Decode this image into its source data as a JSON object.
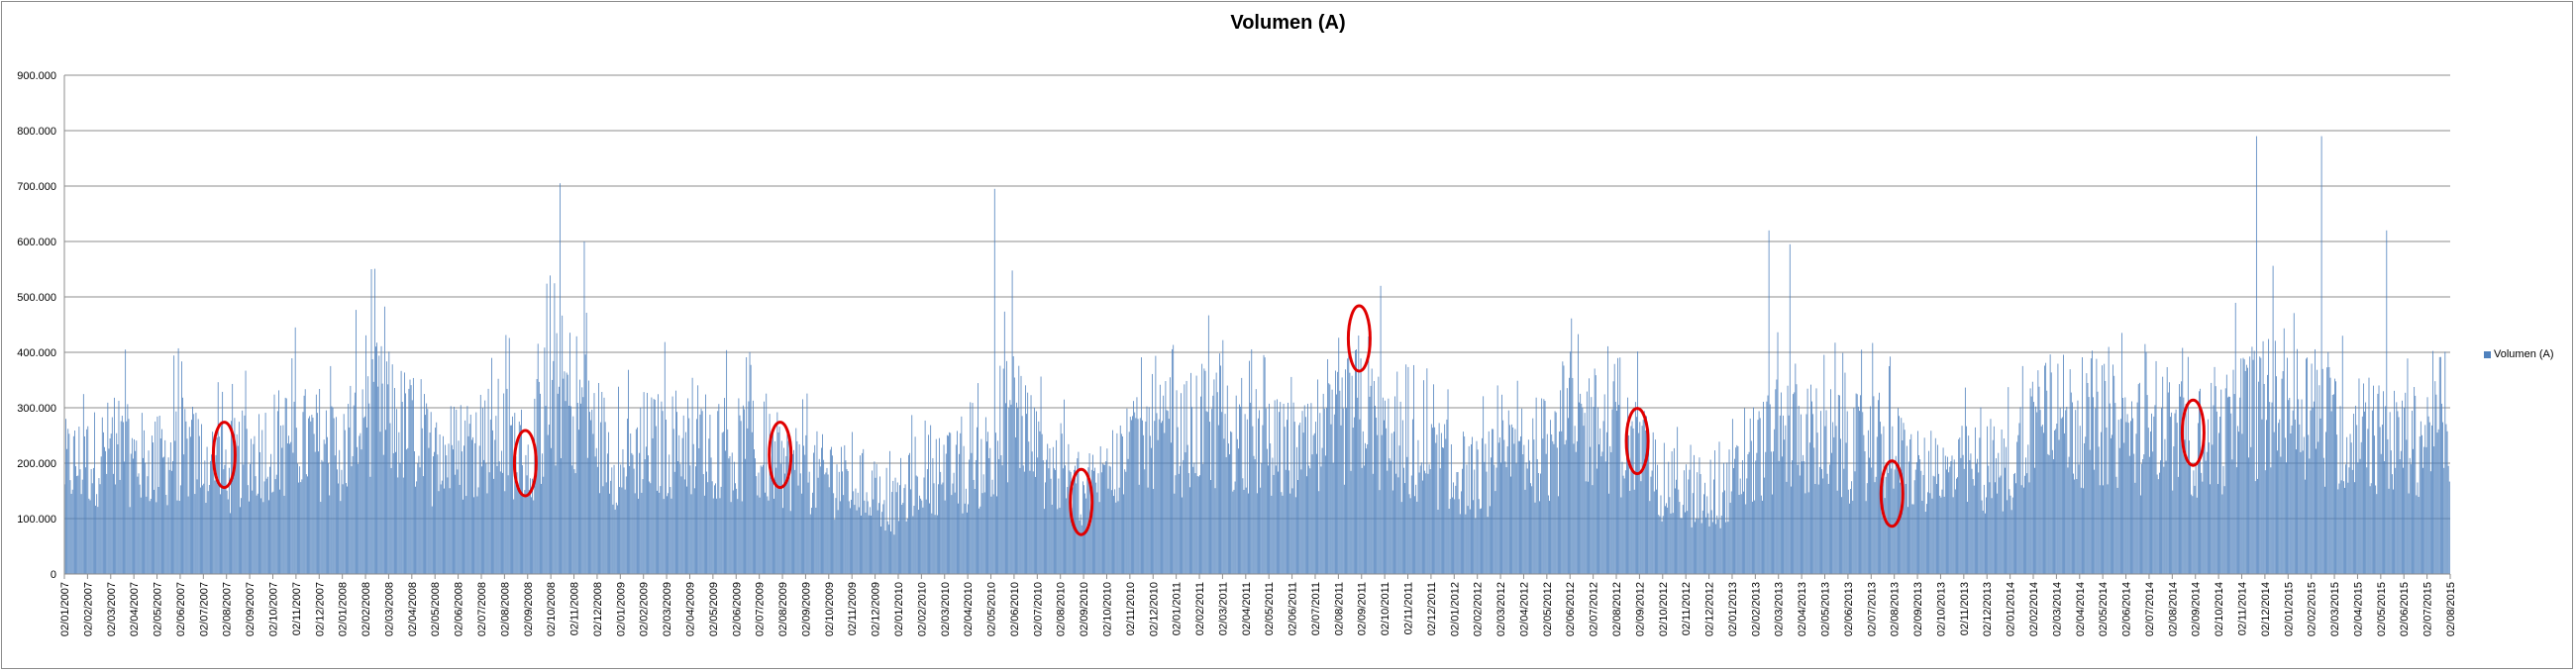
{
  "chart_data": {
    "type": "bar",
    "title": "Volumen (A)",
    "xlabel": "",
    "ylabel": "",
    "ylim": [
      0,
      900000
    ],
    "grid": true,
    "legend_position": "right",
    "y_ticks": [
      "0",
      "100.000",
      "200.000",
      "300.000",
      "400.000",
      "500.000",
      "600.000",
      "700.000",
      "800.000",
      "900.000"
    ],
    "x_ticks": [
      "02/01/2007",
      "02/02/2007",
      "02/03/2007",
      "02/04/2007",
      "02/05/2007",
      "02/06/2007",
      "02/07/2007",
      "02/08/2007",
      "02/09/2007",
      "02/10/2007",
      "02/11/2007",
      "02/12/2007",
      "02/01/2008",
      "02/02/2008",
      "02/03/2008",
      "02/04/2008",
      "02/05/2008",
      "02/06/2008",
      "02/07/2008",
      "02/08/2008",
      "02/09/2008",
      "02/10/2008",
      "02/11/2008",
      "02/12/2008",
      "02/01/2009",
      "02/02/2009",
      "02/03/2009",
      "02/04/2009",
      "02/05/2009",
      "02/06/2009",
      "02/07/2009",
      "02/08/2009",
      "02/09/2009",
      "02/10/2009",
      "02/11/2009",
      "02/12/2009",
      "02/01/2010",
      "02/02/2010",
      "02/03/2010",
      "02/04/2010",
      "02/05/2010",
      "02/06/2010",
      "02/07/2010",
      "02/08/2010",
      "02/09/2010",
      "02/10/2010",
      "02/11/2010",
      "02/12/2010",
      "02/01/2011",
      "02/02/2011",
      "02/03/2011",
      "02/04/2011",
      "02/05/2011",
      "02/06/2011",
      "02/07/2011",
      "02/08/2011",
      "02/09/2011",
      "02/10/2011",
      "02/11/2011",
      "02/12/2011",
      "02/01/2012",
      "02/02/2012",
      "02/03/2012",
      "02/04/2012",
      "02/05/2012",
      "02/06/2012",
      "02/07/2012",
      "02/08/2012",
      "02/09/2012",
      "02/10/2012",
      "02/11/2012",
      "02/12/2012",
      "02/01/2013",
      "02/02/2013",
      "02/03/2013",
      "02/04/2013",
      "02/05/2013",
      "02/06/2013",
      "02/07/2013",
      "02/08/2013",
      "02/09/2013",
      "02/10/2013",
      "02/11/2013",
      "02/12/2013",
      "02/01/2014",
      "02/02/2014",
      "02/03/2014",
      "02/04/2014",
      "02/05/2014",
      "02/06/2014",
      "02/07/2014",
      "02/08/2014",
      "02/09/2014",
      "02/10/2014",
      "02/11/2014",
      "02/12/2014",
      "02/01/2015",
      "02/02/2015",
      "02/03/2015",
      "02/04/2015",
      "02/05/2015",
      "02/06/2015",
      "02/07/2015",
      "02/08/2015"
    ],
    "monthly_mean": [
      200000,
      210000,
      230000,
      215000,
      205000,
      230000,
      215000,
      195000,
      220000,
      240000,
      250000,
      235000,
      230000,
      320000,
      290000,
      260000,
      215000,
      230000,
      255000,
      255000,
      210000,
      320000,
      330000,
      260000,
      195000,
      240000,
      235000,
      260000,
      235000,
      230000,
      220000,
      205000,
      195000,
      175000,
      170000,
      155000,
      120000,
      205000,
      185000,
      190000,
      225000,
      320000,
      215000,
      185000,
      150000,
      190000,
      220000,
      260000,
      240000,
      275000,
      265000,
      250000,
      230000,
      225000,
      220000,
      270000,
      320000,
      245000,
      215000,
      210000,
      195000,
      175000,
      200000,
      225000,
      235000,
      275000,
      270000,
      250000,
      230000,
      165000,
      150000,
      130000,
      170000,
      220000,
      255000,
      255000,
      240000,
      230000,
      240000,
      225000,
      185000,
      175000,
      195000,
      195000,
      190000,
      300000,
      290000,
      280000,
      280000,
      260000,
      255000,
      265000,
      240000,
      250000,
      300000,
      305000,
      320000,
      305000,
      270000,
      265000,
      245000,
      240000,
      255000,
      260000
    ],
    "peaks": [
      {
        "date": "02/03/2007",
        "value": 405000
      },
      {
        "date": "02/02/2008",
        "value": 550000
      },
      {
        "date": "02/10/2008",
        "value": 705000
      },
      {
        "date": "02/11/2008",
        "value": 600000
      },
      {
        "date": "02/05/2010",
        "value": 695000
      },
      {
        "date": "02/09/2011",
        "value": 520000
      },
      {
        "date": "02/02/2013",
        "value": 620000
      },
      {
        "date": "02/03/2013",
        "value": 595000
      },
      {
        "date": "02/11/2014",
        "value": 790000
      },
      {
        "date": "02/02/2015",
        "value": 790000
      },
      {
        "date": "02/05/2015",
        "value": 620000
      }
    ],
    "annotations": [
      {
        "type": "circle",
        "date": "02/08/2007",
        "value": 215000
      },
      {
        "type": "circle",
        "date": "02/09/2008",
        "value": 200000
      },
      {
        "type": "circle",
        "date": "02/08/2009",
        "value": 215000
      },
      {
        "type": "circle",
        "date": "02/09/2010",
        "value": 130000
      },
      {
        "type": "circle",
        "date": "02/09/2011",
        "value": 425000
      },
      {
        "type": "circle",
        "date": "02/09/2012",
        "value": 240000
      },
      {
        "type": "circle",
        "date": "02/08/2013",
        "value": 145000
      },
      {
        "type": "circle",
        "date": "02/09/2014",
        "value": 255000
      }
    ],
    "series": [
      {
        "name": "Volumen (A)",
        "color": "#4f81bd"
      }
    ],
    "annotation_color": "#e00000",
    "gridline_color": "#8c8c8c"
  }
}
